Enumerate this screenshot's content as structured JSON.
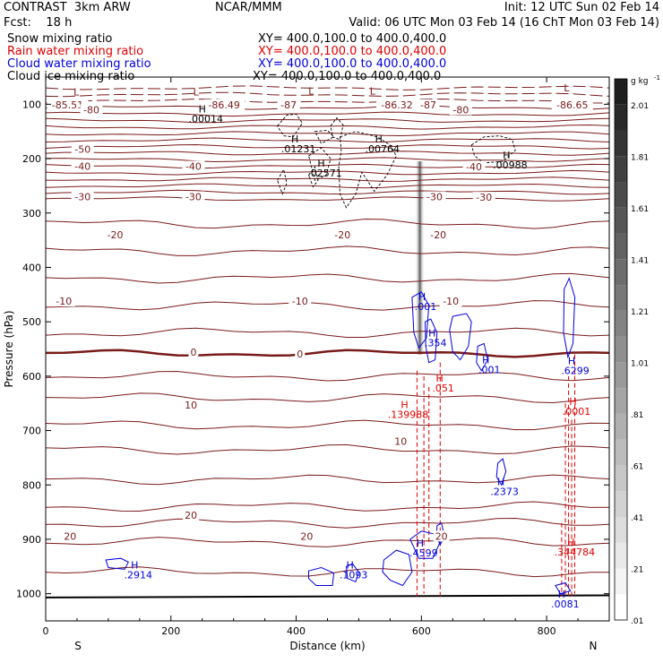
{
  "header": {
    "model": "CONTRAST  3km ARW",
    "fcst": "Fcst:    18 h",
    "center": "NCAR/MMM",
    "init": "Init: 12 UTC Sun 02 Feb 14",
    "valid": "Valid: 06 UTC Mon 03 Feb 14 (16 ChT Mon 03 Feb 14)",
    "fields": [
      {
        "name": "Snow mixing ratio",
        "xy": "XY= 400.0,100.0 to 400.0,400.0",
        "color": "#000000"
      },
      {
        "name": "Rain water mixing ratio",
        "xy": "XY= 400.0,100.0 to 400.0,400.0",
        "color": "#e00000"
      },
      {
        "name": "Cloud water mixing ratio",
        "xy": "XY= 400.0,100.0 to 400.0,400.0",
        "color": "#0000e0"
      },
      {
        "name": "Cloud ice mixing ratio",
        "xy": "XY= 400.0,100.0 to 400.0,400.0",
        "color": "#000000"
      }
    ]
  },
  "chart_data": {
    "type": "contour cross-section",
    "xlabel": "Distance (km)",
    "ylabel": "Pressure (hPa)",
    "xlim": [
      0,
      900
    ],
    "ylim": [
      1050,
      50
    ],
    "x_ticks": [
      "0",
      "200",
      "400",
      "600",
      "800"
    ],
    "x_tick_values": [
      0,
      200,
      400,
      600,
      800
    ],
    "y_ticks": [
      "100",
      "200",
      "300",
      "400",
      "500",
      "600",
      "700",
      "800",
      "900",
      "1000"
    ],
    "y_tick_values": [
      100,
      200,
      300,
      400,
      500,
      600,
      700,
      800,
      900,
      1000
    ],
    "end_labels": {
      "left": "S",
      "right": "N"
    },
    "colorbar": {
      "unit": "g kg",
      "unit_exp": "-1",
      "tick_labels": [
        "2.01",
        "1.81",
        "1.61",
        "1.41",
        "1.21",
        "1.01",
        ".81",
        ".61",
        ".41",
        ".21",
        ".01"
      ],
      "tick_values": [
        2.01,
        1.81,
        1.61,
        1.41,
        1.21,
        1.01,
        0.81,
        0.61,
        0.41,
        0.21,
        0.01
      ],
      "levels": [
        0.01,
        0.11,
        0.21,
        0.31,
        0.41,
        0.51,
        0.61,
        0.71,
        0.81,
        0.91,
        1.01,
        1.11,
        1.21,
        1.31,
        1.41,
        1.51,
        1.61,
        1.71,
        1.81,
        1.91,
        2.01,
        2.11
      ]
    },
    "temperature_labels": [
      {
        "text": "-85.51",
        "x": 35,
        "p": 101
      },
      {
        "text": "-80",
        "x": 73,
        "p": 110
      },
      {
        "text": "-86.49",
        "x": 285,
        "p": 101
      },
      {
        "text": "-87",
        "x": 388,
        "p": 101
      },
      {
        "text": "-86.32",
        "x": 561,
        "p": 101
      },
      {
        "text": "-87",
        "x": 611,
        "p": 101
      },
      {
        "text": "-80",
        "x": 663,
        "p": 110
      },
      {
        "text": "-86.65",
        "x": 841,
        "p": 101
      },
      {
        "text": "-50",
        "x": 59,
        "p": 183
      },
      {
        "text": "-40",
        "x": 59,
        "p": 214
      },
      {
        "text": "-40",
        "x": 236,
        "p": 214
      },
      {
        "text": "-40",
        "x": 684,
        "p": 215
      },
      {
        "text": "-30",
        "x": 59,
        "p": 270
      },
      {
        "text": "-30",
        "x": 236,
        "p": 270
      },
      {
        "text": "-30",
        "x": 621,
        "p": 270
      },
      {
        "text": "-30",
        "x": 700,
        "p": 271
      },
      {
        "text": "-20",
        "x": 111,
        "p": 340
      },
      {
        "text": "-20",
        "x": 474,
        "p": 340
      },
      {
        "text": "-20",
        "x": 627,
        "p": 340
      },
      {
        "text": "-10",
        "x": 29,
        "p": 462
      },
      {
        "text": "-10",
        "x": 406,
        "p": 462
      },
      {
        "text": "-10",
        "x": 647,
        "p": 462
      },
      {
        "text": "0",
        "x": 236,
        "p": 556
      },
      {
        "text": "0",
        "x": 406,
        "p": 559
      },
      {
        "text": "10",
        "x": 232,
        "p": 653
      },
      {
        "text": "10",
        "x": 567,
        "p": 720
      },
      {
        "text": "20",
        "x": 232,
        "p": 856
      },
      {
        "text": "20",
        "x": 39,
        "p": 894
      },
      {
        "text": "20",
        "x": 417,
        "p": 894
      },
      {
        "text": "20",
        "x": 632,
        "p": 894
      }
    ],
    "extrema_labels": [
      {
        "mark": "L",
        "text": "",
        "x": 49,
        "p": 84,
        "color": "#7a1a1a"
      },
      {
        "mark": "L",
        "text": "",
        "x": 240,
        "p": 84,
        "color": "#7a1a1a"
      },
      {
        "mark": "L",
        "text": "",
        "x": 424,
        "p": 82,
        "color": "#7a1a1a"
      },
      {
        "mark": "L",
        "text": "",
        "x": 522,
        "p": 82,
        "color": "#7a1a1a"
      },
      {
        "mark": "L",
        "text": "",
        "x": 832,
        "p": 76,
        "color": "#7a1a1a"
      },
      {
        "mark": "H",
        "text": ".00014",
        "x": 250,
        "p": 115,
        "color": "#000000"
      },
      {
        "mark": "H",
        "text": ".01231",
        "x": 398,
        "p": 170,
        "color": "#000000"
      },
      {
        "mark": "H",
        "text": ".00764",
        "x": 532,
        "p": 170,
        "color": "#000000"
      },
      {
        "mark": "H",
        "text": ".02571",
        "x": 440,
        "p": 215,
        "color": "#000000"
      },
      {
        "mark": "H",
        "text": ".00988",
        "x": 736,
        "p": 200,
        "color": "#000000"
      },
      {
        "mark": "H",
        "text": ".001",
        "x": 601,
        "p": 460,
        "color": "#0000e0"
      },
      {
        "mark": "H",
        "text": ".354",
        "x": 617,
        "p": 527,
        "color": "#0000e0"
      },
      {
        "mark": "H",
        "text": ".001",
        "x": 703,
        "p": 576,
        "color": "#0000e0"
      },
      {
        "mark": "H",
        "text": ".6299",
        "x": 840,
        "p": 578,
        "color": "#0000e0"
      },
      {
        "mark": "H",
        "text": ".051",
        "x": 629,
        "p": 610,
        "color": "#e00000"
      },
      {
        "mark": "H",
        "text": ".0001",
        "x": 842,
        "p": 653,
        "color": "#e00000"
      },
      {
        "mark": "H",
        "text": ".139988",
        "x": 573,
        "p": 659,
        "color": "#e00000"
      },
      {
        "mark": "H",
        "text": ".2373",
        "x": 727,
        "p": 800,
        "color": "#0000e0"
      },
      {
        "mark": "H",
        "text": ".4599",
        "x": 598,
        "p": 913,
        "color": "#0000e0"
      },
      {
        "mark": "H",
        "text": ".344784",
        "x": 839,
        "p": 912,
        "color": "#e00000"
      },
      {
        "mark": "H",
        "text": ".2914",
        "x": 142,
        "p": 954,
        "color": "#0000e0"
      },
      {
        "mark": "H",
        "text": ".1093",
        "x": 486,
        "p": 954,
        "color": "#0000e0"
      },
      {
        "mark": "H",
        "text": ".0081",
        "x": 824,
        "p": 1007,
        "color": "#0000e0"
      }
    ]
  }
}
